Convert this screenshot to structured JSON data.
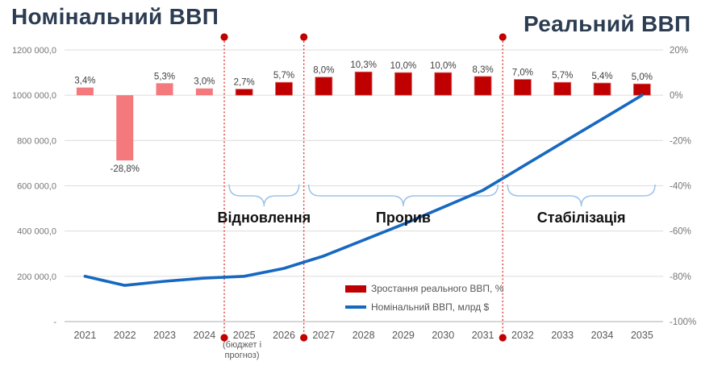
{
  "chart_data": {
    "type": "combo-bar-line",
    "title_left": "Номінальний ВВП",
    "title_right": "Реальний ВВП",
    "years": [
      "2021",
      "2022",
      "2023",
      "2024",
      "2025",
      "2026",
      "2027",
      "2028",
      "2029",
      "2030",
      "2031",
      "2032",
      "2033",
      "2034",
      "2035"
    ],
    "series": [
      {
        "name": "Зростання реального ВВП, %",
        "type": "bar",
        "axis": "right",
        "values": [
          3.4,
          -28.8,
          5.3,
          3.0,
          2.7,
          5.7,
          8.0,
          10.3,
          10.0,
          10.0,
          8.3,
          7.0,
          5.7,
          5.4,
          5.0
        ],
        "labels": [
          "3,4%",
          "-28,8%",
          "5,3%",
          "3,0%",
          "2,7%",
          "5,7%",
          "8,0%",
          "10,3%",
          "10,0%",
          "10,0%",
          "8,3%",
          "7,0%",
          "5,7%",
          "5,4%",
          "5,0%"
        ],
        "actual_years": [
          "2021",
          "2022",
          "2023",
          "2024"
        ],
        "forecast_from": "2025"
      },
      {
        "name": "Номінальний ВВП, млрд $",
        "type": "line",
        "axis": "left",
        "values": [
          200000,
          160000,
          178000,
          192000,
          200000,
          235000,
          290000,
          360000,
          430000,
          505000,
          580000,
          685000,
          790000,
          895000,
          1000000
        ]
      }
    ],
    "left_axis": {
      "ticks": [
        "1200 000,0",
        "1000 000,0",
        "800 000,0",
        "600 000,0",
        "400 000,0",
        "200 000,0",
        "-"
      ],
      "min": 0,
      "max": 1200000
    },
    "right_axis": {
      "ticks": [
        "20%",
        "0%",
        "-20%",
        "-40%",
        "-60%",
        "-80%",
        "-100%"
      ],
      "min": -100,
      "max": 20
    },
    "grid": true,
    "dividers": [
      {
        "between": [
          "2024",
          "2025"
        ]
      },
      {
        "between": [
          "2026",
          "2027"
        ]
      },
      {
        "between": [
          "2031",
          "2032"
        ]
      }
    ],
    "phases": [
      {
        "label": "Відновлення"
      },
      {
        "label": "Прорив"
      },
      {
        "label": "Стабілізація"
      }
    ],
    "x_note": {
      "under_year": "2025",
      "lines": [
        "(бюджет і",
        "прогноз)"
      ]
    },
    "legend": [
      {
        "label": "Зростання реального ВВП, %",
        "swatch": "bar"
      },
      {
        "label": "Номінальний ВВП, млрд $",
        "swatch": "line"
      }
    ],
    "colors": {
      "title": "#2c3c52",
      "bar_actual": "#f4797d",
      "bar_forecast": "#c00000",
      "bar_forecast_edge": "#dc6b6b",
      "line": "#1668c1",
      "divider": "#e03a3a",
      "divider_dot": "#c00000",
      "brace": "#9cc3e8",
      "grid": "#dcdcdc",
      "axis": "#d0d0d0",
      "tick_text": "#767676",
      "x_text": "#595959",
      "bar_label_text": "#404040",
      "phase_text": "#111111"
    }
  }
}
